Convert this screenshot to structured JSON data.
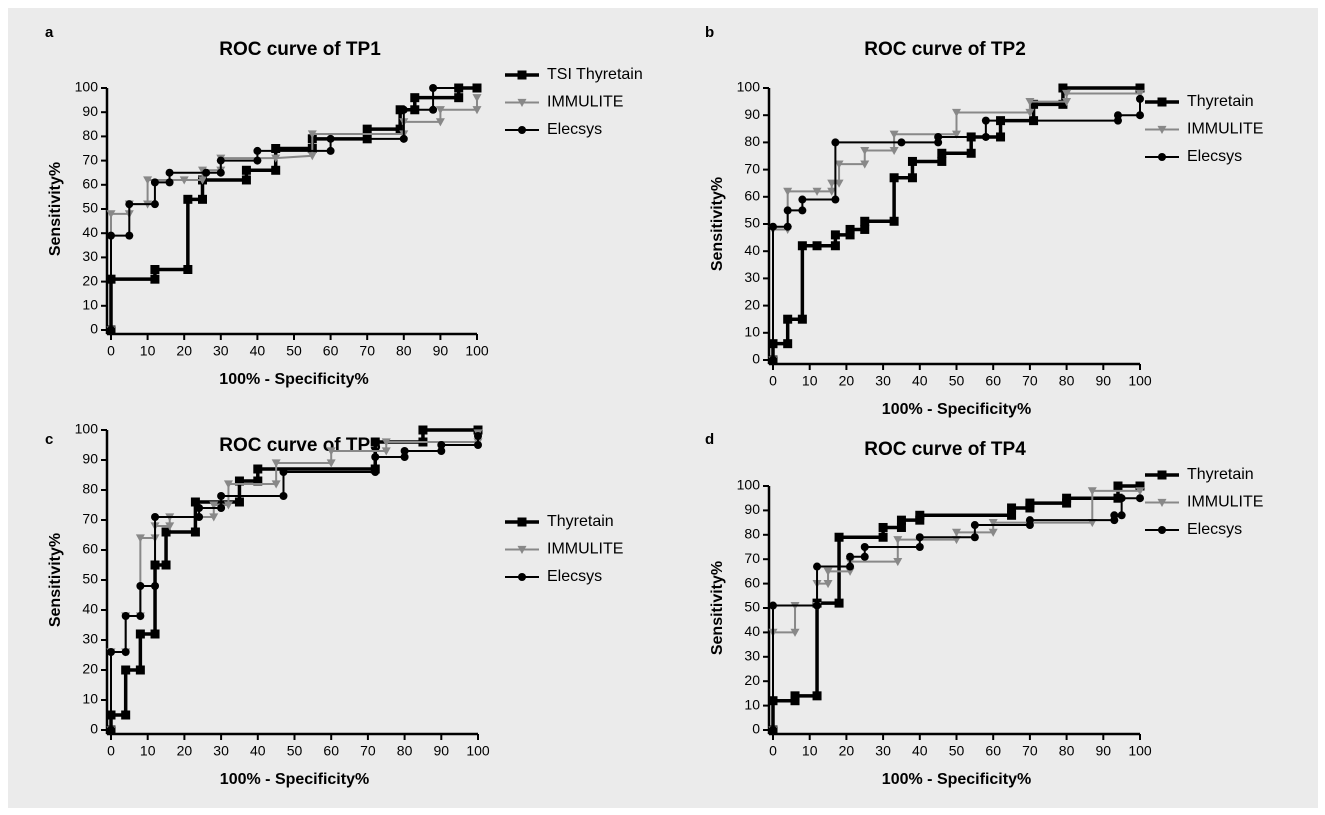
{
  "chart_data": [
    {
      "type": "line",
      "label": "a",
      "title": "ROC curve of TP1",
      "xlabel": "100% - Specificity%",
      "ylabel": "Sensitivity%",
      "xlim": [
        0,
        100
      ],
      "ylim": [
        0,
        100
      ],
      "xticks": [
        0,
        10,
        20,
        30,
        40,
        50,
        60,
        70,
        80,
        90,
        100
      ],
      "yticks": [
        0,
        10,
        20,
        30,
        40,
        50,
        60,
        70,
        80,
        90,
        100
      ],
      "series": [
        {
          "name": "TSI Thyretain",
          "color": "#000000",
          "marker": "square",
          "x": [
            0,
            0,
            12,
            12,
            21,
            21,
            25,
            25,
            37,
            37,
            45,
            45,
            55,
            55,
            70,
            70,
            79,
            79,
            83,
            83,
            95,
            95,
            100
          ],
          "values": [
            0,
            21,
            21,
            25,
            25,
            54,
            54,
            62,
            62,
            66,
            66,
            75,
            75,
            79,
            79,
            83,
            83,
            91,
            91,
            96,
            96,
            100,
            100
          ]
        },
        {
          "name": "IMMULITE",
          "color": "#888888",
          "marker": "triangle",
          "x": [
            0,
            0,
            5,
            5,
            10,
            10,
            20,
            25,
            25,
            30,
            30,
            45,
            55,
            55,
            80,
            80,
            90,
            90,
            100,
            100
          ],
          "values": [
            0,
            48,
            48,
            52,
            52,
            62,
            62,
            62,
            66,
            66,
            71,
            71,
            72,
            81,
            81,
            86,
            86,
            91,
            91,
            96
          ]
        },
        {
          "name": "Elecsys",
          "color": "#000000",
          "marker": "circle",
          "x": [
            0,
            0,
            5,
            5,
            12,
            12,
            16,
            16,
            26,
            30,
            30,
            40,
            40,
            60,
            60,
            80,
            80,
            88,
            88,
            100
          ],
          "values": [
            0,
            39,
            39,
            52,
            52,
            61,
            61,
            65,
            65,
            65,
            70,
            70,
            74,
            74,
            79,
            79,
            91,
            91,
            100,
            100
          ]
        }
      ]
    },
    {
      "type": "line",
      "label": "b",
      "title": "ROC curve of TP2",
      "xlabel": "100% - Specificity%",
      "ylabel": "Sensitivity%",
      "xlim": [
        0,
        100
      ],
      "ylim": [
        0,
        100
      ],
      "xticks": [
        0,
        10,
        20,
        30,
        40,
        50,
        60,
        70,
        80,
        90,
        100
      ],
      "yticks": [
        0,
        10,
        20,
        30,
        40,
        50,
        60,
        70,
        80,
        90,
        100
      ],
      "series": [
        {
          "name": "Thyretain",
          "color": "#000000",
          "marker": "square",
          "x": [
            0,
            0,
            4,
            4,
            8,
            8,
            12,
            17,
            17,
            21,
            21,
            25,
            25,
            33,
            33,
            38,
            38,
            46,
            46,
            54,
            54,
            62,
            62,
            71,
            71,
            79,
            79,
            100
          ],
          "values": [
            0,
            6,
            6,
            15,
            15,
            42,
            42,
            42,
            46,
            46,
            48,
            48,
            51,
            51,
            67,
            67,
            73,
            73,
            76,
            76,
            82,
            82,
            88,
            88,
            94,
            94,
            100,
            100
          ]
        },
        {
          "name": "IMMULITE",
          "color": "#888888",
          "marker": "triangle",
          "x": [
            0,
            0,
            4,
            4,
            12,
            16,
            16,
            18,
            18,
            25,
            25,
            33,
            33,
            50,
            50,
            70,
            70,
            80,
            80,
            100
          ],
          "values": [
            0,
            48,
            48,
            62,
            62,
            62,
            65,
            65,
            72,
            72,
            77,
            77,
            83,
            83,
            91,
            91,
            95,
            95,
            98,
            98
          ]
        },
        {
          "name": "Elecsys",
          "color": "#000000",
          "marker": "circle",
          "x": [
            0,
            0,
            4,
            4,
            8,
            8,
            17,
            17,
            35,
            45,
            45,
            58,
            58,
            94,
            94,
            100,
            100
          ],
          "values": [
            0,
            49,
            49,
            55,
            55,
            59,
            59,
            80,
            80,
            80,
            82,
            82,
            88,
            88,
            90,
            90,
            96
          ]
        }
      ]
    },
    {
      "type": "line",
      "label": "c",
      "title": "ROC curve of TP3",
      "xlabel": "100% - Specificity%",
      "ylabel": "Sensitivity%",
      "xlim": [
        0,
        100
      ],
      "ylim": [
        0,
        100
      ],
      "xticks": [
        0,
        10,
        20,
        30,
        40,
        50,
        60,
        70,
        80,
        90,
        100
      ],
      "yticks": [
        0,
        10,
        20,
        30,
        40,
        50,
        60,
        70,
        80,
        90,
        100
      ],
      "series": [
        {
          "name": "Thyretain",
          "color": "#000000",
          "marker": "square",
          "x": [
            0,
            0,
            4,
            4,
            8,
            8,
            12,
            12,
            15,
            15,
            23,
            23,
            35,
            35,
            40,
            40,
            72,
            72,
            85,
            85,
            100
          ],
          "values": [
            0,
            5,
            5,
            20,
            20,
            32,
            32,
            55,
            55,
            66,
            66,
            76,
            76,
            83,
            83,
            87,
            87,
            96,
            96,
            100,
            100
          ]
        },
        {
          "name": "IMMULITE",
          "color": "#888888",
          "marker": "triangle",
          "x": [
            0,
            0,
            4,
            4,
            8,
            8,
            12,
            12,
            16,
            16,
            28,
            28,
            32,
            32,
            45,
            45,
            60,
            60,
            75,
            75,
            100,
            100
          ],
          "values": [
            0,
            26,
            26,
            38,
            38,
            64,
            64,
            68,
            68,
            71,
            71,
            75,
            75,
            82,
            82,
            89,
            89,
            93,
            93,
            96,
            96,
            99
          ]
        },
        {
          "name": "Elecsys",
          "color": "#000000",
          "marker": "circle",
          "x": [
            0,
            0,
            4,
            4,
            8,
            8,
            12,
            12,
            24,
            24,
            30,
            30,
            47,
            47,
            72,
            72,
            80,
            80,
            90,
            90,
            100,
            100
          ],
          "values": [
            0,
            26,
            26,
            38,
            38,
            48,
            48,
            71,
            71,
            74,
            74,
            78,
            78,
            86,
            86,
            91,
            91,
            93,
            93,
            95,
            95,
            98
          ]
        }
      ]
    },
    {
      "type": "line",
      "label": "d",
      "title": "ROC curve of TP4",
      "xlabel": "100% - Specificity%",
      "ylabel": "Sensitivity%",
      "xlim": [
        0,
        100
      ],
      "ylim": [
        0,
        100
      ],
      "xticks": [
        0,
        10,
        20,
        30,
        40,
        50,
        60,
        70,
        80,
        90,
        100
      ],
      "yticks": [
        0,
        10,
        20,
        30,
        40,
        50,
        60,
        70,
        80,
        90,
        100
      ],
      "series": [
        {
          "name": "Thyretain",
          "color": "#000000",
          "marker": "square",
          "x": [
            0,
            0,
            6,
            6,
            12,
            12,
            18,
            18,
            30,
            30,
            35,
            35,
            40,
            40,
            65,
            65,
            70,
            70,
            80,
            80,
            94,
            94,
            100
          ],
          "values": [
            0,
            12,
            12,
            14,
            14,
            52,
            52,
            79,
            79,
            83,
            83,
            86,
            86,
            88,
            88,
            91,
            91,
            93,
            93,
            95,
            95,
            100,
            100
          ]
        },
        {
          "name": "IMMULITE",
          "color": "#888888",
          "marker": "triangle",
          "x": [
            0,
            0,
            6,
            6,
            12,
            12,
            15,
            15,
            21,
            21,
            34,
            34,
            50,
            50,
            60,
            60,
            87,
            87,
            100
          ],
          "values": [
            0,
            40,
            40,
            51,
            51,
            60,
            60,
            65,
            65,
            69,
            69,
            78,
            78,
            81,
            81,
            85,
            85,
            98,
            98
          ]
        },
        {
          "name": "Elecsys",
          "color": "#000000",
          "marker": "circle",
          "x": [
            0,
            0,
            12,
            12,
            21,
            21,
            25,
            25,
            40,
            40,
            55,
            55,
            70,
            70,
            93,
            93,
            95,
            95,
            100
          ],
          "values": [
            0,
            51,
            51,
            67,
            67,
            71,
            71,
            75,
            75,
            79,
            79,
            84,
            84,
            86,
            86,
            88,
            88,
            95,
            95
          ]
        }
      ]
    }
  ]
}
